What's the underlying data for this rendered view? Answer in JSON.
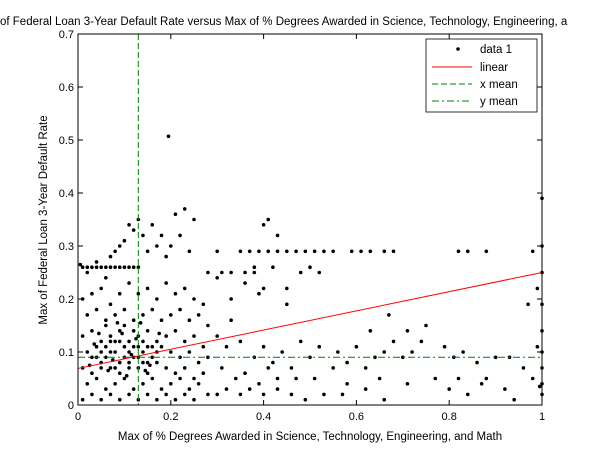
{
  "chart_data": {
    "type": "scatter",
    "title": "of Federal Loan 3-Year Default Rate versus Max of % Degrees Awarded in Science, Technology, Engineering, a",
    "xlabel": "Max of % Degrees Awarded in Science, Technology, Engineering, and Math",
    "ylabel": "Max of Federal Loan 3-Year Default Rate",
    "xlim": [
      0,
      1
    ],
    "ylim": [
      0,
      0.7
    ],
    "xticks": [
      0,
      0.2,
      0.4,
      0.6,
      0.8,
      1
    ],
    "yticks": [
      0,
      0.1,
      0.2,
      0.3,
      0.4,
      0.5,
      0.6,
      0.7
    ],
    "xtick_labels": [
      "0",
      "0.2",
      "0.4",
      "0.6",
      "0.8",
      "1"
    ],
    "ytick_labels": [
      "0",
      "0.1",
      "0.2",
      "0.3",
      "0.4",
      "0.5",
      "0.6",
      "0.7"
    ],
    "grid": false,
    "legend_position": "top-right",
    "legend": [
      "data 1",
      "linear",
      "x mean",
      "y mean"
    ],
    "series": [
      {
        "name": "data 1",
        "type": "scatter",
        "color": "#000000",
        "points": [
          [
            0.005,
            0.265
          ],
          [
            0.01,
            0.26
          ],
          [
            0.02,
            0.26
          ],
          [
            0.03,
            0.26
          ],
          [
            0.04,
            0.26
          ],
          [
            0.05,
            0.26
          ],
          [
            0.06,
            0.26
          ],
          [
            0.07,
            0.26
          ],
          [
            0.08,
            0.26
          ],
          [
            0.09,
            0.26
          ],
          [
            0.1,
            0.26
          ],
          [
            0.11,
            0.26
          ],
          [
            0.12,
            0.26
          ],
          [
            0.13,
            0.26
          ],
          [
            0.02,
            0.25
          ],
          [
            0.04,
            0.27
          ],
          [
            0.06,
            0.24
          ],
          [
            0.08,
            0.29
          ],
          [
            0.1,
            0.31
          ],
          [
            0.12,
            0.33
          ],
          [
            0.13,
            0.35
          ],
          [
            0.11,
            0.34
          ],
          [
            0.09,
            0.3
          ],
          [
            0.07,
            0.28
          ],
          [
            0.14,
            0.32
          ],
          [
            0.15,
            0.29
          ],
          [
            0.17,
            0.3
          ],
          [
            0.16,
            0.34
          ],
          [
            0.18,
            0.32
          ],
          [
            0.2,
            0.3
          ],
          [
            0.21,
            0.36
          ],
          [
            0.23,
            0.37
          ],
          [
            0.22,
            0.32
          ],
          [
            0.25,
            0.35
          ],
          [
            0.24,
            0.29
          ],
          [
            0.19,
            0.28
          ],
          [
            0.195,
            0.507
          ],
          [
            0.01,
            0.2
          ],
          [
            0.03,
            0.21
          ],
          [
            0.05,
            0.22
          ],
          [
            0.07,
            0.19
          ],
          [
            0.09,
            0.21
          ],
          [
            0.11,
            0.23
          ],
          [
            0.13,
            0.21
          ],
          [
            0.15,
            0.22
          ],
          [
            0.17,
            0.2
          ],
          [
            0.19,
            0.23
          ],
          [
            0.21,
            0.21
          ],
          [
            0.23,
            0.22
          ],
          [
            0.25,
            0.2
          ],
          [
            0.27,
            0.19
          ],
          [
            0.02,
            0.17
          ],
          [
            0.04,
            0.18
          ],
          [
            0.06,
            0.16
          ],
          [
            0.08,
            0.17
          ],
          [
            0.1,
            0.18
          ],
          [
            0.12,
            0.16
          ],
          [
            0.14,
            0.17
          ],
          [
            0.16,
            0.18
          ],
          [
            0.18,
            0.16
          ],
          [
            0.2,
            0.17
          ],
          [
            0.22,
            0.18
          ],
          [
            0.24,
            0.16
          ],
          [
            0.26,
            0.17
          ],
          [
            0.28,
            0.15
          ],
          [
            0.01,
            0.13
          ],
          [
            0.03,
            0.14
          ],
          [
            0.05,
            0.12
          ],
          [
            0.07,
            0.13
          ],
          [
            0.09,
            0.14
          ],
          [
            0.11,
            0.12
          ],
          [
            0.13,
            0.13
          ],
          [
            0.15,
            0.14
          ],
          [
            0.17,
            0.12
          ],
          [
            0.19,
            0.13
          ],
          [
            0.21,
            0.14
          ],
          [
            0.23,
            0.12
          ],
          [
            0.25,
            0.13
          ],
          [
            0.27,
            0.11
          ],
          [
            0.02,
            0.1
          ],
          [
            0.04,
            0.09
          ],
          [
            0.06,
            0.11
          ],
          [
            0.08,
            0.1
          ],
          [
            0.1,
            0.09
          ],
          [
            0.12,
            0.11
          ],
          [
            0.14,
            0.1
          ],
          [
            0.16,
            0.09
          ],
          [
            0.18,
            0.11
          ],
          [
            0.2,
            0.1
          ],
          [
            0.22,
            0.09
          ],
          [
            0.24,
            0.1
          ],
          [
            0.26,
            0.08
          ],
          [
            0.28,
            0.09
          ],
          [
            0.01,
            0.07
          ],
          [
            0.03,
            0.06
          ],
          [
            0.05,
            0.08
          ],
          [
            0.07,
            0.07
          ],
          [
            0.09,
            0.06
          ],
          [
            0.11,
            0.08
          ],
          [
            0.13,
            0.07
          ],
          [
            0.15,
            0.06
          ],
          [
            0.17,
            0.08
          ],
          [
            0.19,
            0.07
          ],
          [
            0.21,
            0.06
          ],
          [
            0.23,
            0.07
          ],
          [
            0.25,
            0.05
          ],
          [
            0.27,
            0.06
          ],
          [
            0.02,
            0.04
          ],
          [
            0.04,
            0.05
          ],
          [
            0.06,
            0.03
          ],
          [
            0.08,
            0.04
          ],
          [
            0.1,
            0.05
          ],
          [
            0.12,
            0.03
          ],
          [
            0.14,
            0.04
          ],
          [
            0.16,
            0.05
          ],
          [
            0.18,
            0.03
          ],
          [
            0.2,
            0.04
          ],
          [
            0.22,
            0.05
          ],
          [
            0.24,
            0.03
          ],
          [
            0.26,
            0.04
          ],
          [
            0.28,
            0.02
          ],
          [
            0.01,
            0.01
          ],
          [
            0.03,
            0.02
          ],
          [
            0.05,
            0.01
          ],
          [
            0.07,
            0.02
          ],
          [
            0.09,
            0.01
          ],
          [
            0.11,
            0.02
          ],
          [
            0.13,
            0.01
          ],
          [
            0.15,
            0.02
          ],
          [
            0.17,
            0.01
          ],
          [
            0.19,
            0.02
          ],
          [
            0.21,
            0.01
          ],
          [
            0.23,
            0.02
          ],
          [
            0.25,
            0.01
          ],
          [
            0.3,
            0.02
          ],
          [
            0.06,
            0.15
          ],
          [
            0.08,
            0.12
          ],
          [
            0.1,
            0.15
          ],
          [
            0.12,
            0.14
          ],
          [
            0.14,
            0.12
          ],
          [
            0.04,
            0.11
          ],
          [
            0.06,
            0.09
          ],
          [
            0.08,
            0.07
          ],
          [
            0.1,
            0.11
          ],
          [
            0.12,
            0.09
          ],
          [
            0.14,
            0.08
          ],
          [
            0.16,
            0.11
          ],
          [
            0.05,
            0.1
          ],
          [
            0.07,
            0.12
          ],
          [
            0.09,
            0.08
          ],
          [
            0.11,
            0.1
          ],
          [
            0.13,
            0.09
          ],
          [
            0.15,
            0.11
          ],
          [
            0.03,
            0.09
          ],
          [
            0.05,
            0.07
          ],
          [
            0.07,
            0.1
          ],
          [
            0.09,
            0.12
          ],
          [
            0.11,
            0.07
          ],
          [
            0.13,
            0.11
          ],
          [
            0.15,
            0.08
          ],
          [
            0.17,
            0.1
          ],
          [
            0.035,
            0.115
          ],
          [
            0.075,
            0.085
          ],
          [
            0.115,
            0.095
          ],
          [
            0.155,
            0.075
          ],
          [
            0.095,
            0.135
          ],
          [
            0.125,
            0.125
          ],
          [
            0.065,
            0.065
          ],
          [
            0.105,
            0.055
          ],
          [
            0.145,
            0.065
          ],
          [
            0.085,
            0.155
          ],
          [
            0.045,
            0.135
          ],
          [
            0.135,
            0.155
          ],
          [
            0.175,
            0.135
          ],
          [
            0.025,
            0.075
          ],
          [
            0.3,
            0.29
          ],
          [
            0.35,
            0.29
          ],
          [
            0.37,
            0.29
          ],
          [
            0.39,
            0.29
          ],
          [
            0.41,
            0.29
          ],
          [
            0.43,
            0.29
          ],
          [
            0.45,
            0.29
          ],
          [
            0.47,
            0.29
          ],
          [
            0.49,
            0.29
          ],
          [
            0.51,
            0.29
          ],
          [
            0.53,
            0.29
          ],
          [
            0.55,
            0.29
          ],
          [
            0.59,
            0.29
          ],
          [
            0.61,
            0.29
          ],
          [
            0.63,
            0.29
          ],
          [
            0.66,
            0.29
          ],
          [
            0.68,
            0.29
          ],
          [
            0.82,
            0.29
          ],
          [
            0.84,
            0.29
          ],
          [
            0.88,
            0.29
          ],
          [
            0.98,
            0.29
          ],
          [
            0.4,
            0.34
          ],
          [
            0.41,
            0.35
          ],
          [
            0.43,
            0.32
          ],
          [
            0.36,
            0.23
          ],
          [
            0.4,
            0.22
          ],
          [
            0.42,
            0.26
          ],
          [
            0.38,
            0.26
          ],
          [
            0.45,
            0.22
          ],
          [
            0.5,
            0.26
          ],
          [
            0.3,
            0.24
          ],
          [
            0.33,
            0.2
          ],
          [
            0.28,
            0.25
          ],
          [
            0.31,
            0.25
          ],
          [
            0.33,
            0.25
          ],
          [
            0.36,
            0.25
          ],
          [
            0.38,
            0.25
          ],
          [
            0.48,
            0.25
          ],
          [
            0.52,
            0.25
          ],
          [
            0.39,
            0.21
          ],
          [
            0.45,
            0.19
          ],
          [
            0.3,
            0.13
          ],
          [
            0.32,
            0.11
          ],
          [
            0.33,
            0.16
          ],
          [
            0.35,
            0.12
          ],
          [
            0.38,
            0.09
          ],
          [
            0.4,
            0.11
          ],
          [
            0.42,
            0.08
          ],
          [
            0.44,
            0.1
          ],
          [
            0.46,
            0.07
          ],
          [
            0.48,
            0.12
          ],
          [
            0.5,
            0.09
          ],
          [
            0.52,
            0.11
          ],
          [
            0.31,
            0.07
          ],
          [
            0.34,
            0.05
          ],
          [
            0.36,
            0.06
          ],
          [
            0.39,
            0.04
          ],
          [
            0.41,
            0.07
          ],
          [
            0.43,
            0.05
          ],
          [
            0.47,
            0.05
          ],
          [
            0.51,
            0.05
          ],
          [
            0.55,
            0.07
          ],
          [
            0.58,
            0.04
          ],
          [
            0.32,
            0.03
          ],
          [
            0.35,
            0.02
          ],
          [
            0.37,
            0.03
          ],
          [
            0.4,
            0.02
          ],
          [
            0.43,
            0.03
          ],
          [
            0.46,
            0.02
          ],
          [
            0.49,
            0.01
          ],
          [
            0.53,
            0.02
          ],
          [
            0.57,
            0.02
          ],
          [
            0.62,
            0.03
          ],
          [
            0.66,
            0.01
          ],
          [
            0.56,
            0.1
          ],
          [
            0.58,
            0.08
          ],
          [
            0.6,
            0.11
          ],
          [
            0.62,
            0.07
          ],
          [
            0.64,
            0.09
          ],
          [
            0.66,
            0.1
          ],
          [
            0.68,
            0.12
          ],
          [
            0.65,
            0.05
          ],
          [
            0.7,
            0.09
          ],
          [
            0.71,
            0.04
          ],
          [
            0.72,
            0.1
          ],
          [
            0.63,
            0.14
          ],
          [
            0.67,
            0.17
          ],
          [
            0.71,
            0.14
          ],
          [
            0.74,
            0.12
          ],
          [
            0.77,
            0.05
          ],
          [
            0.79,
            0.11
          ],
          [
            0.81,
            0.09
          ],
          [
            0.83,
            0.1
          ],
          [
            0.86,
            0.08
          ],
          [
            0.88,
            0.05
          ],
          [
            0.9,
            0.09
          ],
          [
            0.75,
            0.15
          ],
          [
            0.8,
            0.03
          ],
          [
            0.82,
            0.05
          ],
          [
            0.84,
            0.02
          ],
          [
            0.87,
            0.04
          ],
          [
            0.92,
            0.03
          ],
          [
            0.94,
            0.01
          ],
          [
            0.96,
            0.07
          ],
          [
            0.98,
            0.05
          ],
          [
            0.93,
            0.09
          ],
          [
            0.97,
            0.19
          ],
          [
            0.99,
            0.22
          ],
          [
            1.0,
            0.19
          ],
          [
            1.0,
            0.3
          ],
          [
            1.0,
            0.39
          ],
          [
            1.0,
            0.25
          ],
          [
            1.0,
            0.14
          ],
          [
            1.0,
            0.1
          ],
          [
            1.0,
            0.07
          ],
          [
            1.0,
            0.04
          ],
          [
            1.0,
            0.02
          ],
          [
            0.99,
            0.11
          ],
          [
            0.995,
            0.035
          ]
        ]
      },
      {
        "name": "linear",
        "type": "line",
        "color": "#ff0000",
        "x": [
          0,
          1
        ],
        "y": [
          0.069,
          0.25
        ]
      },
      {
        "name": "x mean",
        "type": "vline",
        "color": "#008000",
        "x": 0.13
      },
      {
        "name": "y mean",
        "type": "hline",
        "color": "#008000",
        "y": 0.09
      }
    ]
  }
}
